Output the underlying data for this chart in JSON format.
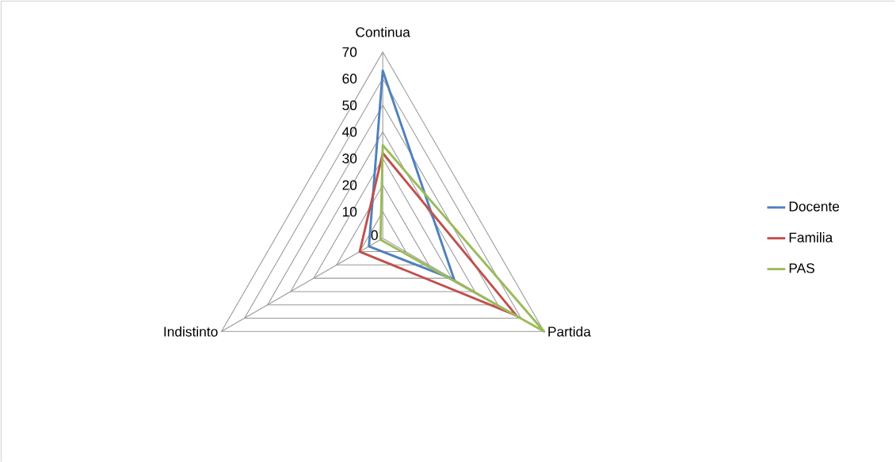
{
  "chart_data": {
    "type": "radar",
    "categories": [
      "Continua",
      "Partida",
      "Indistinto"
    ],
    "series": [
      {
        "name": "Docente",
        "color": "#4f81bd",
        "values": [
          63,
          31,
          6
        ]
      },
      {
        "name": "Familia",
        "color": "#c0504d",
        "values": [
          32,
          58,
          10
        ]
      },
      {
        "name": "PAS",
        "color": "#9bbb59",
        "values": [
          35,
          70,
          1
        ]
      }
    ],
    "ylim": [
      0,
      70
    ],
    "yticks": [
      0,
      10,
      20,
      30,
      40,
      50,
      60,
      70
    ],
    "grid": true,
    "legend": "right"
  }
}
